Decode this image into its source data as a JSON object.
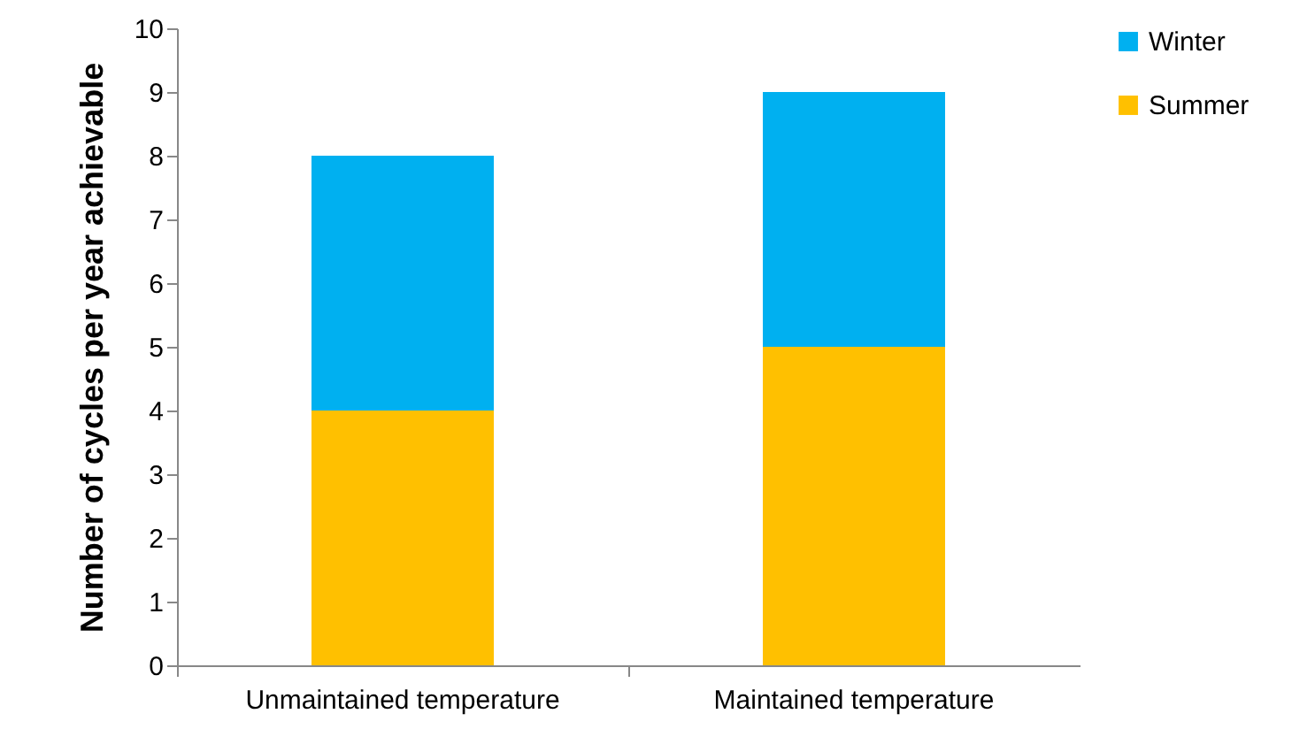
{
  "chart_data": {
    "type": "bar",
    "stacked": true,
    "ylabel": "Number of cycles per year achievable",
    "categories": [
      "Unmaintained temperature",
      "Maintained temperature"
    ],
    "series": [
      {
        "name": "Summer",
        "color": "#ffc000",
        "values": [
          4,
          5
        ]
      },
      {
        "name": "Winter",
        "color": "#00b0f0",
        "values": [
          4,
          4
        ]
      }
    ],
    "ylim": [
      0,
      10
    ],
    "yticks": [
      0,
      1,
      2,
      3,
      4,
      5,
      6,
      7,
      8,
      9,
      10
    ],
    "grid": false,
    "legend": "right"
  }
}
